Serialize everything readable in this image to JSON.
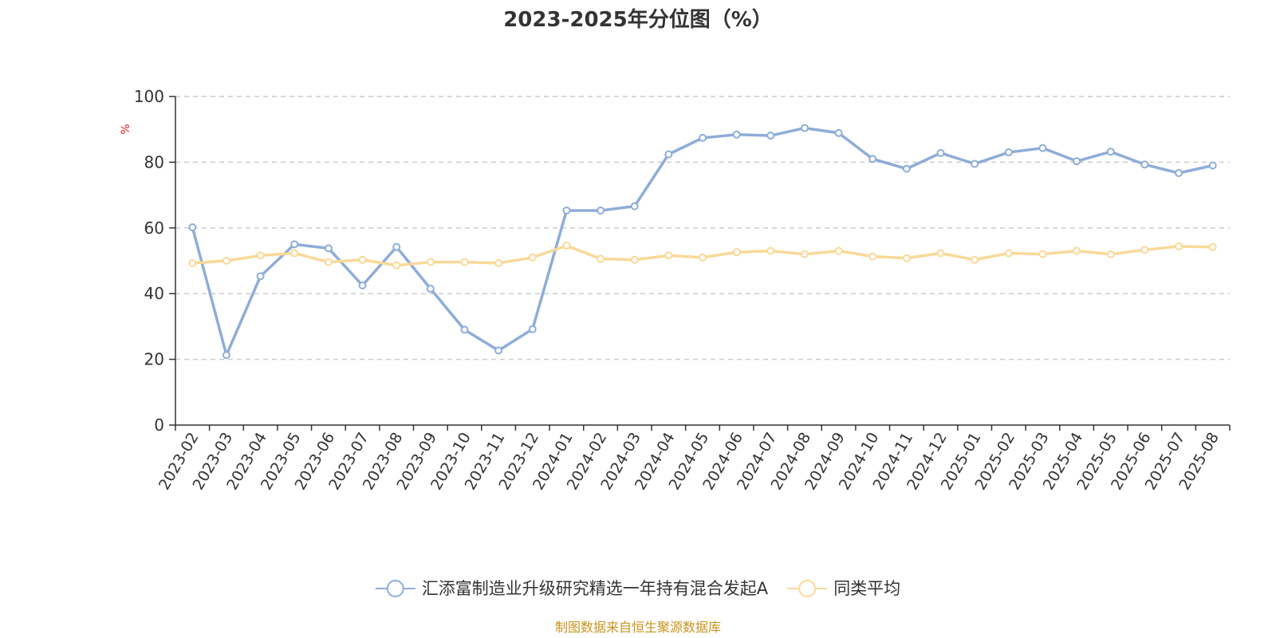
{
  "chart_data": {
    "type": "line",
    "title": "2023-2025年分位图（%）",
    "ylabel": "%",
    "ylim": [
      0,
      100
    ],
    "yticks": [
      0,
      20,
      40,
      60,
      80,
      100
    ],
    "grid": true,
    "legend_position": "bottom-center",
    "categories": [
      "2023-02",
      "2023-03",
      "2023-04",
      "2023-05",
      "2023-06",
      "2023-07",
      "2023-08",
      "2023-09",
      "2023-10",
      "2023-11",
      "2023-12",
      "2024-01",
      "2024-02",
      "2024-03",
      "2024-04",
      "2024-05",
      "2024-06",
      "2024-07",
      "2024-08",
      "2024-09",
      "2024-10",
      "2024-11",
      "2024-12",
      "2025-01",
      "2025-02",
      "2025-03",
      "2025-04",
      "2025-05",
      "2025-06",
      "2025-07",
      "2025-08"
    ],
    "series": [
      {
        "name": "汇添富制造业升级研究精选一年持有混合发起A",
        "color": "#8eadd8",
        "values": [
          60.2,
          21.3,
          45.3,
          55.0,
          53.8,
          42.5,
          54.2,
          41.5,
          29.0,
          22.7,
          29.2,
          65.3,
          65.3,
          66.6,
          82.4,
          87.4,
          88.4,
          88.1,
          90.4,
          88.9,
          81.0,
          78.0,
          82.8,
          79.5,
          83.0,
          84.3,
          80.3,
          83.2,
          79.3,
          76.7,
          79.0
        ]
      },
      {
        "name": "同类平均",
        "color": "#f9d998",
        "values": [
          49.3,
          50.0,
          51.6,
          52.3,
          49.6,
          50.3,
          48.6,
          49.6,
          49.6,
          49.3,
          51.0,
          54.6,
          50.6,
          50.3,
          51.6,
          51.0,
          52.6,
          53.0,
          52.0,
          53.0,
          51.3,
          50.8,
          52.3,
          50.3,
          52.3,
          52.0,
          53.0,
          52.0,
          53.3,
          54.4,
          54.2
        ]
      }
    ]
  },
  "source_text": "制图数据来自恒生聚源数据库",
  "colors": {
    "title": "#333333",
    "axis": "#333333",
    "grid": "#cccccc",
    "unit": "#e02020",
    "source": "#c8941e"
  }
}
